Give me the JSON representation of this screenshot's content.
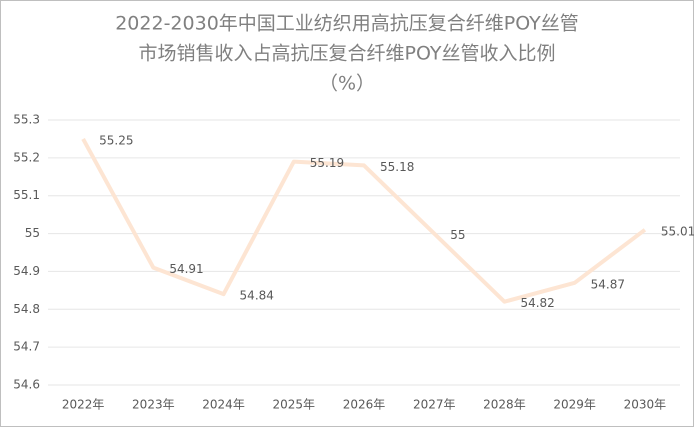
{
  "chart_data": {
    "type": "line",
    "title": [
      "2022-2030年中国工业纺织用高抗压复合纤维POY丝管",
      "市场销售收入占高抗压复合纤维POY丝管收入比例",
      "（%）"
    ],
    "categories": [
      "2022年",
      "2023年",
      "2024年",
      "2025年",
      "2026年",
      "2027年",
      "2028年",
      "2029年",
      "2030年"
    ],
    "values": [
      55.25,
      54.91,
      54.84,
      55.19,
      55.18,
      55,
      54.82,
      54.87,
      55.01
    ],
    "color": "#fde5d3",
    "ylim": [
      54.6,
      55.3
    ],
    "yticks": [
      54.6,
      54.7,
      54.8,
      54.9,
      55,
      55.1,
      55.2,
      55.3
    ],
    "grid": true
  }
}
